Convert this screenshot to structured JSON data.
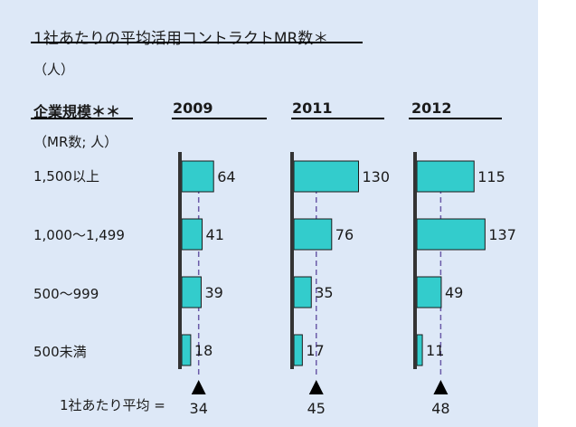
{
  "title": "1社あたりの平均活用コントラクトMR数＊",
  "unit": "（人）",
  "category_header": "企業規模＊＊",
  "category_unit": "（MR数; 人）",
  "average_label": "1社あたり平均 =",
  "colors": {
    "panel_background": "#dde8f7",
    "bar_fill": "#33cccc",
    "bar_stroke": "#1a1a1a",
    "axis": "#333333",
    "avg_line": "#6a5aa8",
    "marker": "#000000"
  },
  "chart_data": {
    "type": "bar",
    "orientation": "horizontal",
    "categories": [
      "1,500以上",
      "1,000〜1,499",
      "500〜999",
      "500未満"
    ],
    "series": [
      {
        "name": "2009",
        "values": [
          64,
          41,
          39,
          18
        ],
        "average": 34
      },
      {
        "name": "2011",
        "values": [
          130,
          76,
          35,
          17
        ],
        "average": 45
      },
      {
        "name": "2012",
        "values": [
          115,
          137,
          49,
          11
        ],
        "average": 48
      }
    ]
  }
}
